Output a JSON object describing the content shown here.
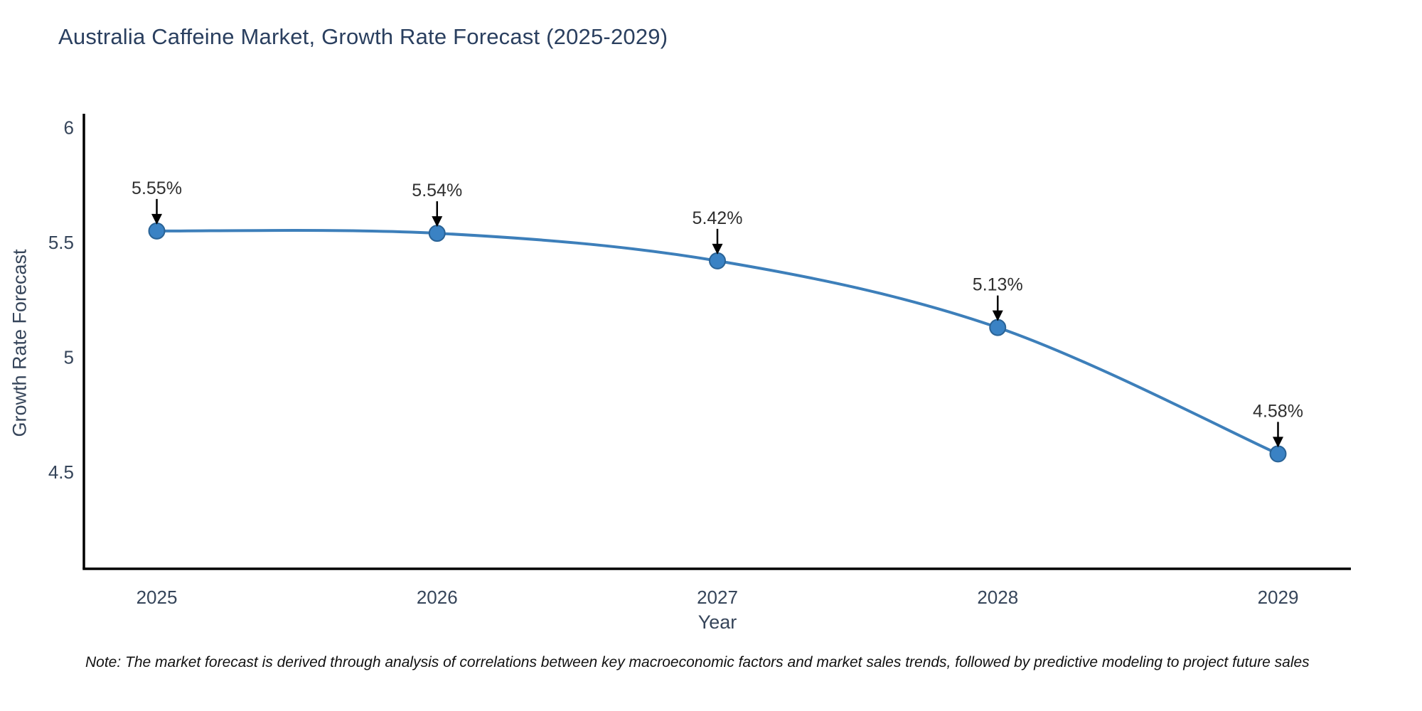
{
  "title": "Australia Caffeine Market, Growth Rate Forecast (2025-2029)",
  "note": "Note: The market forecast is derived through analysis of correlations between key macroeconomic factors and market sales trends, followed by predictive modeling to project future sales",
  "chart_data": {
    "type": "line",
    "title": "Australia Caffeine Market, Growth Rate Forecast (2025-2029)",
    "xlabel": "Year",
    "ylabel": "Growth Rate Forecast",
    "x": [
      2025,
      2026,
      2027,
      2028,
      2029
    ],
    "x_tick_labels": [
      "2025",
      "2026",
      "2027",
      "2028",
      "2029"
    ],
    "values": [
      5.55,
      5.54,
      5.42,
      5.13,
      4.58
    ],
    "point_labels": [
      "5.55%",
      "5.54%",
      "5.42%",
      "5.13%",
      "4.58%"
    ],
    "y_ticks": [
      6,
      5.5,
      5,
      4.5
    ],
    "y_tick_labels": [
      "6",
      "5.5",
      "5",
      "4.5"
    ],
    "ylim": [
      4.08,
      6.06
    ],
    "xlim": [
      2024.74,
      2029.26
    ],
    "grid": false,
    "legend_position": "none",
    "annotation_style": "down-arrow",
    "colors": {
      "line": "#3d7fba",
      "marker_fill": "#3a82c4",
      "marker_edge": "#2a6396",
      "axis": "#000000",
      "title_text": "#2a3f5f",
      "tick_text": "#36455a",
      "annotation_text": "#2f2f2f",
      "arrow": "#000000",
      "background": "#ffffff"
    }
  }
}
